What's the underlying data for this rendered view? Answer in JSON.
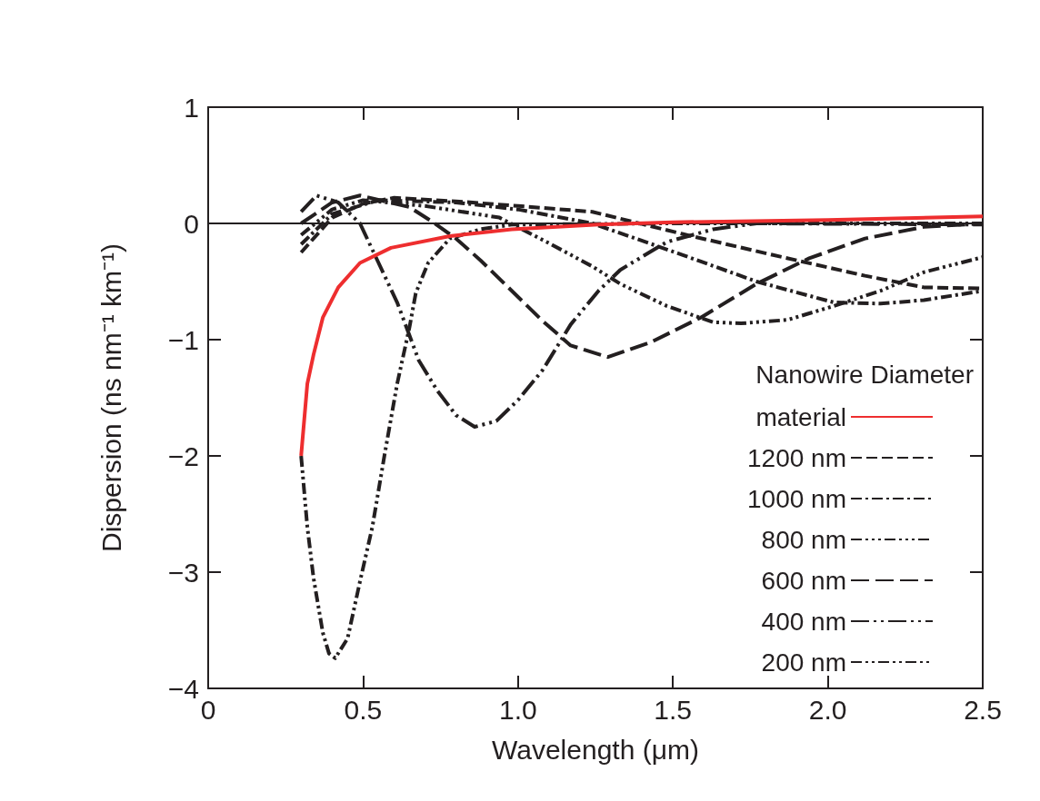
{
  "chart_data": {
    "type": "line",
    "xlabel": "Wavelength (μm)",
    "ylabel": "Dispersion (ns nm⁻¹ km⁻¹)",
    "legend_title": "Nanowire Diameter",
    "legend": "bottom right",
    "grid": false,
    "marker": "none",
    "xlim": [
      0,
      2.5
    ],
    "xticks": [
      0,
      0.5,
      {
        "value": 1,
        "label": "1.0"
      },
      1.5,
      {
        "value": 2,
        "label": "2.0"
      },
      2.5
    ],
    "ylim": [
      -4,
      1
    ],
    "yticks": [
      {
        "value": -4,
        "label": "−4"
      },
      {
        "value": -3,
        "label": "−3"
      },
      {
        "value": -2,
        "label": "−2"
      },
      {
        "value": -1,
        "label": "−1"
      },
      0,
      1
    ],
    "ref_lines": [
      {
        "axis": "y",
        "value": 0,
        "color": "#231f20"
      }
    ],
    "series": [
      {
        "name": "material",
        "color": "#ee2e2f",
        "line_style": "solid",
        "x": [
          0.3,
          0.32,
          0.34,
          0.37,
          0.42,
          0.49,
          0.59,
          0.78,
          0.98,
          1.26,
          1.5,
          2.0,
          2.5
        ],
        "values": [
          -2,
          -1.38,
          -1.13,
          -0.81,
          -0.55,
          -0.34,
          -0.21,
          -0.11,
          -0.05,
          -0.01,
          0.01,
          0.03,
          0.06
        ]
      },
      {
        "name": "1200 nm",
        "color": "#231f20",
        "line_style": "dashed",
        "x": [
          0.3,
          0.4,
          0.5,
          0.6,
          0.8,
          1.0,
          1.24,
          1.53,
          1.82,
          2.12,
          2.31,
          2.5
        ],
        "values": [
          -0.25,
          0.05,
          0.17,
          0.22,
          0.19,
          0.15,
          0.1,
          -0.09,
          -0.27,
          -0.45,
          -0.55,
          -0.56
        ]
      },
      {
        "name": "1000 nm",
        "color": "#231f20",
        "line_style": "dashed",
        "x": [
          0.3,
          0.4,
          0.55,
          0.8,
          1.0,
          1.24,
          1.53,
          1.77,
          2.02,
          2.17,
          2.31,
          2.5
        ],
        "values": [
          -0.18,
          0.08,
          0.2,
          0.18,
          0.12,
          0.0,
          -0.27,
          -0.5,
          -0.68,
          -0.69,
          -0.66,
          -0.58
        ]
      },
      {
        "name": "800 nm",
        "color": "#231f20",
        "line_style": "dashed",
        "x": [
          0.3,
          0.4,
          0.5,
          0.7,
          0.94,
          1.1,
          1.24,
          1.33,
          1.48,
          1.63,
          1.72,
          1.87,
          2.02,
          2.17,
          2.31,
          2.5
        ],
        "values": [
          -0.1,
          0.12,
          0.2,
          0.15,
          0.05,
          -0.17,
          -0.37,
          -0.52,
          -0.71,
          -0.85,
          -0.86,
          -0.83,
          -0.71,
          -0.58,
          -0.42,
          -0.29
        ]
      },
      {
        "name": "600 nm",
        "color": "#231f20",
        "line_style": "dashed",
        "x": [
          0.3,
          0.4,
          0.49,
          0.65,
          0.72,
          0.8,
          0.88,
          0.98,
          1.08,
          1.17,
          1.29,
          1.43,
          1.59,
          1.77,
          1.94,
          2.12,
          2.31,
          2.5
        ],
        "values": [
          0.0,
          0.18,
          0.24,
          0.14,
          0.02,
          -0.13,
          -0.32,
          -0.58,
          -0.84,
          -1.05,
          -1.15,
          -1.02,
          -0.81,
          -0.52,
          -0.3,
          -0.13,
          -0.03,
          0.0
        ]
      },
      {
        "name": "400 nm",
        "color": "#231f20",
        "line_style": "dashed",
        "x": [
          0.3,
          0.35,
          0.42,
          0.49,
          0.55,
          0.61,
          0.68,
          0.74,
          0.8,
          0.86,
          0.93,
          1.0,
          1.08,
          1.17,
          1.26,
          1.33,
          1.48,
          1.63,
          1.77,
          2.5
        ],
        "values": [
          0.1,
          0.24,
          0.18,
          0.0,
          -0.34,
          -0.68,
          -1.18,
          -1.44,
          -1.65,
          -1.75,
          -1.7,
          -1.52,
          -1.26,
          -0.87,
          -0.58,
          -0.4,
          -0.16,
          -0.05,
          0.0,
          -0.01
        ]
      },
      {
        "name": "200 nm",
        "color": "#231f20",
        "line_style": "dashed",
        "x": [
          0.3,
          0.32,
          0.34,
          0.37,
          0.39,
          0.41,
          0.45,
          0.49,
          0.53,
          0.57,
          0.61,
          0.65,
          0.67,
          0.71,
          0.78,
          0.88,
          0.98,
          1.5,
          2.5
        ],
        "values": [
          -2,
          -2.61,
          -3.05,
          -3.52,
          -3.7,
          -3.74,
          -3.57,
          -3.08,
          -2.61,
          -1.98,
          -1.38,
          -0.89,
          -0.6,
          -0.34,
          -0.13,
          -0.05,
          -0.01,
          0.0,
          0.0
        ]
      }
    ]
  }
}
